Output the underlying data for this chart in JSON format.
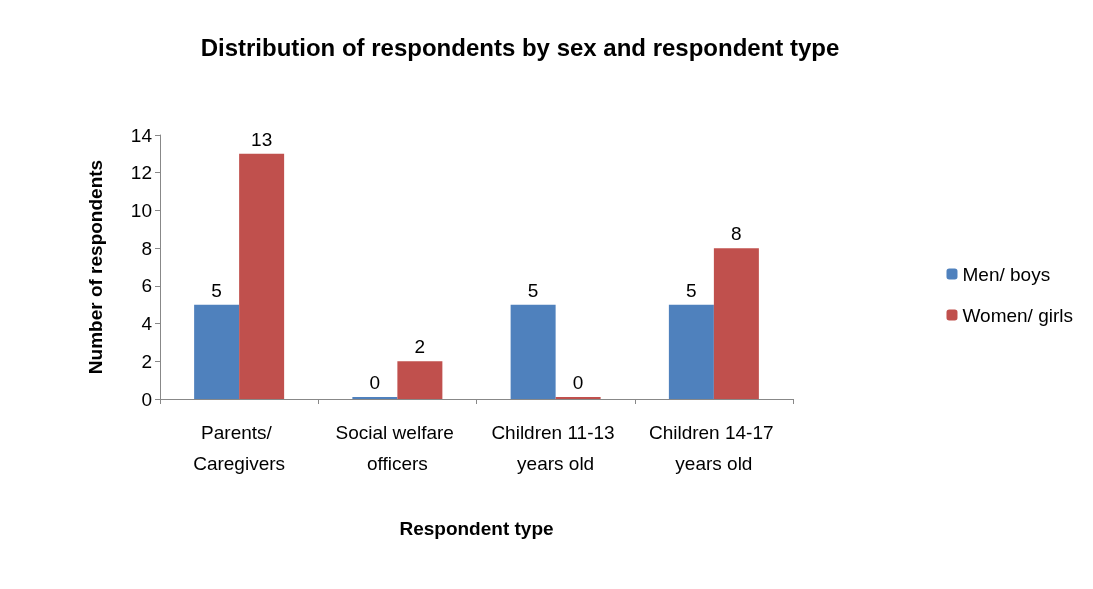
{
  "chart_data": {
    "type": "bar",
    "title": "Distribution of respondents by sex and respondent type",
    "xlabel": "Respondent type",
    "ylabel": "Number of respondents",
    "categories": [
      "Parents/ Caregivers",
      "Social welfare officers",
      "Children 11-13 years old",
      "Children 14-17 years old"
    ],
    "series": [
      {
        "name": "Men/ boys",
        "color": "#4f81bd",
        "values": [
          5,
          0,
          5,
          5
        ]
      },
      {
        "name": "Women/ girls",
        "color": "#c0504d",
        "values": [
          13,
          2,
          0,
          8
        ]
      }
    ],
    "ylim": [
      0,
      14
    ],
    "yticks": [
      0,
      2,
      4,
      6,
      8,
      10,
      12,
      14
    ],
    "grid": false,
    "legend": "right",
    "data_labels": true
  }
}
